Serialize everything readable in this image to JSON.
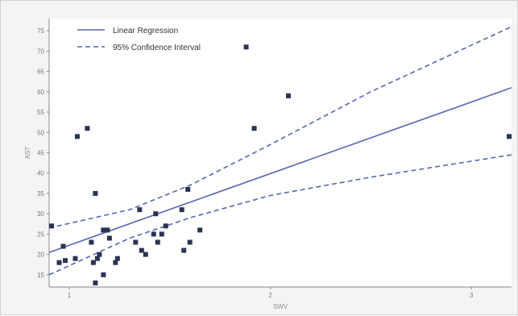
{
  "chart_data": {
    "type": "scatter",
    "xlabel": "SWV",
    "ylabel": "AST",
    "xlim": [
      0.9,
      3.2
    ],
    "ylim": [
      12,
      78
    ],
    "x_ticks": [
      1,
      2,
      3
    ],
    "y_ticks": [
      15,
      20,
      25,
      30,
      35,
      40,
      45,
      50,
      55,
      60,
      65,
      70,
      75
    ],
    "legend": [
      {
        "name": "Linear Regression",
        "style": "solid"
      },
      {
        "name": "95% Confidence Interval",
        "style": "dashed"
      }
    ],
    "legend_position": "top-left",
    "grid": false,
    "colors": {
      "points": "#2b3352",
      "lines": "#5767b3"
    },
    "points": [
      {
        "x": 0.91,
        "y": 27
      },
      {
        "x": 0.95,
        "y": 18
      },
      {
        "x": 0.97,
        "y": 22
      },
      {
        "x": 0.98,
        "y": 18.5
      },
      {
        "x": 1.03,
        "y": 19
      },
      {
        "x": 1.04,
        "y": 49
      },
      {
        "x": 1.09,
        "y": 51
      },
      {
        "x": 1.11,
        "y": 23
      },
      {
        "x": 1.12,
        "y": 18
      },
      {
        "x": 1.13,
        "y": 35
      },
      {
        "x": 1.14,
        "y": 19
      },
      {
        "x": 1.13,
        "y": 13
      },
      {
        "x": 1.15,
        "y": 20
      },
      {
        "x": 1.17,
        "y": 15
      },
      {
        "x": 1.17,
        "y": 26
      },
      {
        "x": 1.19,
        "y": 26
      },
      {
        "x": 1.2,
        "y": 24
      },
      {
        "x": 1.23,
        "y": 18
      },
      {
        "x": 1.24,
        "y": 19
      },
      {
        "x": 1.33,
        "y": 23
      },
      {
        "x": 1.35,
        "y": 31
      },
      {
        "x": 1.36,
        "y": 21
      },
      {
        "x": 1.38,
        "y": 20
      },
      {
        "x": 1.42,
        "y": 25
      },
      {
        "x": 1.43,
        "y": 30
      },
      {
        "x": 1.44,
        "y": 23
      },
      {
        "x": 1.46,
        "y": 25
      },
      {
        "x": 1.48,
        "y": 27
      },
      {
        "x": 1.56,
        "y": 31
      },
      {
        "x": 1.57,
        "y": 21
      },
      {
        "x": 1.59,
        "y": 36
      },
      {
        "x": 1.6,
        "y": 23
      },
      {
        "x": 1.65,
        "y": 26
      },
      {
        "x": 1.88,
        "y": 71
      },
      {
        "x": 1.92,
        "y": 51
      },
      {
        "x": 2.09,
        "y": 59
      },
      {
        "x": 3.2,
        "y": 49
      }
    ],
    "regression": {
      "x": [
        0.9,
        3.2
      ],
      "y": [
        20.5,
        61
      ]
    },
    "ci_upper": {
      "x": [
        0.9,
        1.3,
        1.6,
        2.0,
        2.5,
        3.2
      ],
      "y": [
        26.5,
        31,
        37,
        47,
        60,
        76
      ]
    },
    "ci_lower": {
      "x": [
        0.9,
        1.3,
        1.6,
        2.0,
        2.5,
        3.2
      ],
      "y": [
        15,
        24,
        29,
        34.5,
        39,
        44.5
      ]
    }
  }
}
